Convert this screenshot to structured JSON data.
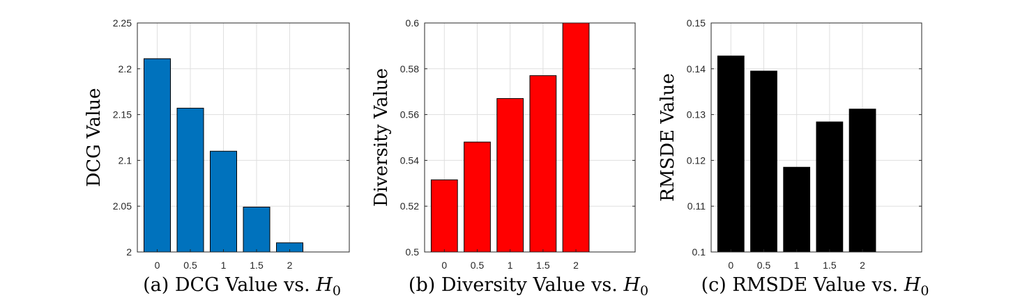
{
  "chart_data": [
    {
      "type": "bar",
      "categories": [
        "0",
        "0.5",
        "1",
        "1.5",
        "2"
      ],
      "values": [
        2.211,
        2.157,
        2.11,
        2.049,
        2.01
      ],
      "ylabel": "DCG Value",
      "xlabel": "",
      "ylim": [
        2,
        2.25
      ],
      "yticks": [
        "2",
        "2.05",
        "2.1",
        "2.15",
        "2.2",
        "2.25"
      ],
      "bar_color": "#0072BD",
      "grid": true,
      "caption": {
        "prefix": "(a) DCG Value vs. ",
        "var": "H",
        "sub": "0"
      }
    },
    {
      "type": "bar",
      "categories": [
        "0",
        "0.5",
        "1",
        "1.5",
        "2"
      ],
      "values": [
        0.5315,
        0.548,
        0.567,
        0.577,
        0.6
      ],
      "ylabel": "Diversity Value",
      "xlabel": "",
      "ylim": [
        0.5,
        0.6
      ],
      "yticks": [
        "0.5",
        "0.52",
        "0.54",
        "0.56",
        "0.58",
        "0.6"
      ],
      "bar_color": "#FF0000",
      "grid": true,
      "caption": {
        "prefix": "(b) Diversity Value vs. ",
        "var": "H",
        "sub": "0"
      }
    },
    {
      "type": "bar",
      "categories": [
        "0",
        "0.5",
        "1",
        "1.5",
        "2"
      ],
      "values": [
        0.1428,
        0.1395,
        0.1185,
        0.1284,
        0.1312
      ],
      "ylabel": "RMSDE Value",
      "xlabel": "",
      "ylim": [
        0.1,
        0.15
      ],
      "yticks": [
        "0.1",
        "0.11",
        "0.12",
        "0.13",
        "0.14",
        "0.15"
      ],
      "bar_color": "#000000",
      "grid": true,
      "caption": {
        "prefix": "(c) RMSDE Value vs. ",
        "var": "H",
        "sub": "0"
      }
    }
  ]
}
